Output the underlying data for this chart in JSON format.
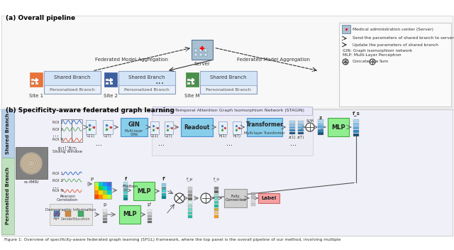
{
  "title_a": "(a) Overall pipeline",
  "title_b": "(b) Specificity-aware federated graph learning",
  "figure_caption": "Figure 1: Overview of specificity-aware federated graph learning (SFGL) framework, where the top panel is the overall pipeline of our method, involving multiple",
  "legend_items": [
    "Medical administration center (Server)",
    "Send the parameters of shared branch to server",
    "Update the parameters of shared branch",
    "GIN: Graph isomorphism network",
    "MLP: Multi-Layer Perceptron",
    "Concatenate",
    "Sum"
  ],
  "site_labels": [
    "Site 1",
    "Site 2",
    "Site M"
  ],
  "site_colors": [
    "#E8743A",
    "#3D5FA0",
    "#4A8F4A"
  ],
  "shared_branch_bg": "#D6E8F7",
  "personalized_branch_bg": "#E8F5E8",
  "server_color": "#AABFCF",
  "gin_box_color": "#87CEEB",
  "readout_box_color": "#87CEEB",
  "transformer_box_color": "#87CEEB",
  "mlp_box_color": "#90EE90",
  "mlp_shared_color": "#90EE90",
  "label_box_color": "#F4A0A0",
  "bg_color": "#FFFFFF",
  "section_a_bg": "#F8F8F8",
  "section_b_shared_bg": "#C8DCF0",
  "section_b_personal_bg": "#D8EDD8",
  "stagin_box_color": "#E8E8F0",
  "bar_colors_shared": [
    "#1a5276",
    "#2e86c1",
    "#5dade2",
    "#85c1e9",
    "#aed6f1"
  ],
  "bar_colors_personal_fp": [
    "#1abc9c",
    "#48c9b0",
    "#76d7c4",
    "#a2d9ce"
  ],
  "bar_colors_personal_fo": [
    "#f39c12",
    "#f8c471",
    "#c0b040"
  ],
  "bar_colors_fa": [
    "#1a5276",
    "#2e86c1",
    "#5dade2",
    "#85c1e9",
    "#aed6f1"
  ]
}
